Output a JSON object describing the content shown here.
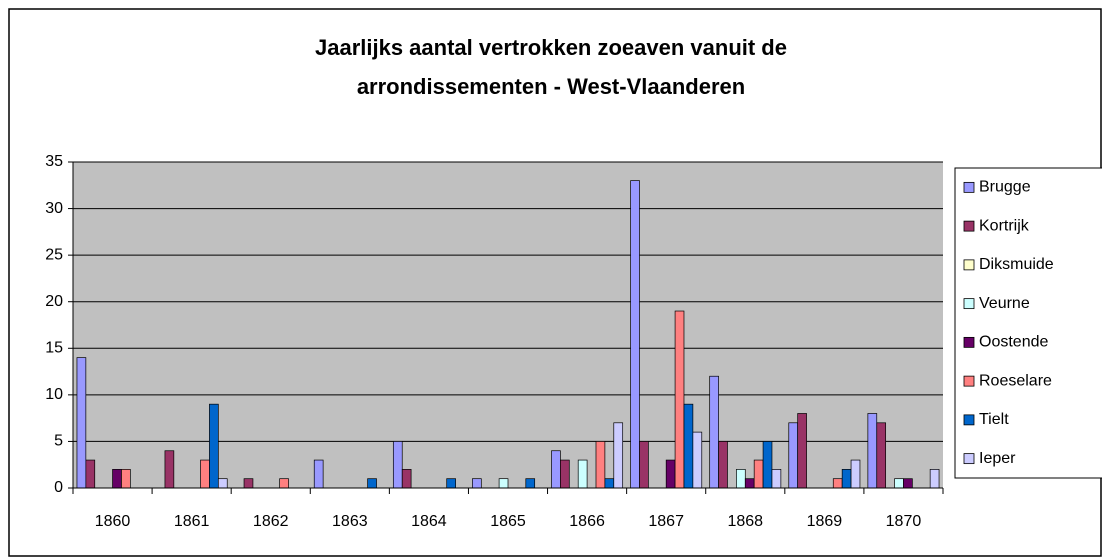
{
  "chart_data": {
    "type": "bar",
    "title": [
      "Jaarlijks aantal vertrokken zoeaven vanuit de",
      "arrondissementen - West-Vlaanderen"
    ],
    "categories": [
      "1860",
      "1861",
      "1862",
      "1863",
      "1864",
      "1865",
      "1866",
      "1867",
      "1868",
      "1869",
      "1870"
    ],
    "series": [
      {
        "name": "Brugge",
        "color": "#9999ff",
        "values": [
          14,
          0,
          0,
          3,
          5,
          1,
          4,
          33,
          12,
          7,
          8
        ]
      },
      {
        "name": "Kortrijk",
        "color": "#993366",
        "values": [
          3,
          4,
          1,
          0,
          2,
          0,
          3,
          5,
          5,
          8,
          7
        ]
      },
      {
        "name": "Diksmuide",
        "color": "#ffffcc",
        "values": [
          0,
          0,
          0,
          0,
          0,
          0,
          0,
          0,
          0,
          0,
          0
        ]
      },
      {
        "name": "Veurne",
        "color": "#ccffff",
        "values": [
          0,
          0,
          0,
          0,
          0,
          1,
          3,
          0,
          2,
          0,
          1
        ]
      },
      {
        "name": "Oostende",
        "color": "#660066",
        "values": [
          2,
          0,
          0,
          0,
          0,
          0,
          0,
          3,
          1,
          0,
          1
        ]
      },
      {
        "name": "Roeselare",
        "color": "#ff8080",
        "values": [
          2,
          3,
          1,
          0,
          0,
          0,
          5,
          19,
          3,
          1,
          0
        ]
      },
      {
        "name": "Tielt",
        "color": "#0066cc",
        "values": [
          0,
          9,
          0,
          1,
          1,
          1,
          1,
          9,
          5,
          2,
          0
        ]
      },
      {
        "name": "Ieper",
        "color": "#ccccff",
        "values": [
          0,
          1,
          0,
          0,
          0,
          0,
          7,
          6,
          2,
          3,
          2
        ]
      }
    ],
    "ylim": [
      0,
      35
    ],
    "yticks": [
      0,
      5,
      10,
      15,
      20,
      25,
      30,
      35
    ],
    "grid": true,
    "plot_background": "#c0c0c0",
    "legend": "right"
  }
}
